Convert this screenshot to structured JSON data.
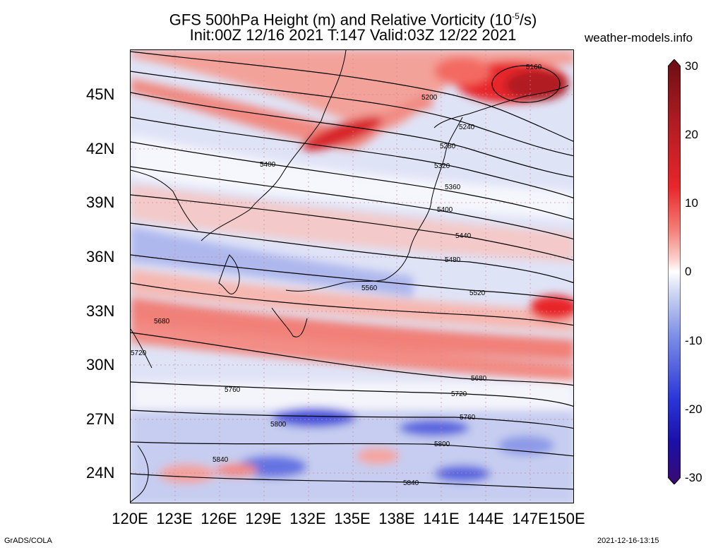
{
  "title": {
    "line1": "GFS 500hPa Height (m) and Relative Vorticity (10",
    "line1_sup": "-5",
    "line1_tail": "/s)",
    "line2": "Init:00Z 12/16 2021 T:147 Valid:03Z 12/22 2021"
  },
  "site": "weather-models.info",
  "footer": {
    "left": "GrADS/COLA",
    "right": "2021-12-16-13:15"
  },
  "axes": {
    "lat_labels": [
      "45N",
      "42N",
      "39N",
      "36N",
      "33N",
      "30N",
      "27N",
      "24N"
    ],
    "lon_labels": [
      "120E",
      "123E",
      "126E",
      "129E",
      "132E",
      "135E",
      "138E",
      "141E",
      "144E",
      "147E",
      "150E"
    ]
  },
  "colorbar": {
    "labels": [
      "30",
      "20",
      "10",
      "0",
      "-10",
      "-20",
      "-30"
    ],
    "colors": [
      "#6a0f14",
      "#b01c22",
      "#e8262a",
      "#f47d76",
      "#fbd0cb",
      "#ffffff",
      "#cdd6f3",
      "#7d8fe6",
      "#2a35d8",
      "#1a10a8",
      "#3a0a70"
    ]
  },
  "contours": {
    "labels": [
      "5160",
      "5200",
      "5240",
      "5280",
      "5320",
      "5360",
      "5400",
      "5400",
      "5440",
      "5480",
      "5520",
      "5560",
      "5680",
      "5680",
      "5720",
      "5720",
      "5760",
      "5760",
      "5800",
      "5800",
      "5840",
      "5840"
    ]
  }
}
